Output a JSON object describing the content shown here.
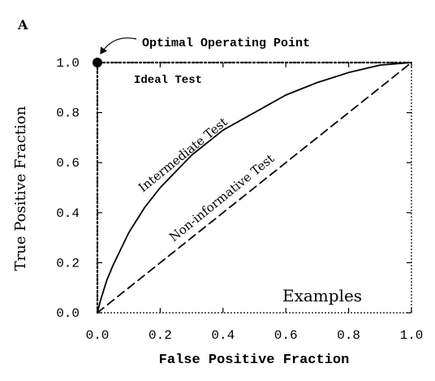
{
  "chart_data": {
    "type": "line",
    "panel_label": "A",
    "xlabel": "False Positive Fraction",
    "ylabel": "True Positive Fraction",
    "xlim": [
      0.0,
      1.0
    ],
    "ylim": [
      0.0,
      1.0
    ],
    "x_ticks": [
      "0.0",
      "0.2",
      "0.4",
      "0.6",
      "0.8",
      "1.0"
    ],
    "y_ticks": [
      "0.0",
      "0.2",
      "0.4",
      "0.6",
      "0.8",
      "1.0"
    ],
    "grid": false,
    "series": [
      {
        "name": "Ideal Test",
        "style": "dotted",
        "x": [
          0.0,
          0.0,
          1.0
        ],
        "y": [
          0.0,
          1.0,
          1.0
        ]
      },
      {
        "name": "Intermediate Test",
        "style": "solid",
        "x": [
          0.0,
          0.01,
          0.03,
          0.05,
          0.1,
          0.15,
          0.2,
          0.3,
          0.4,
          0.5,
          0.6,
          0.7,
          0.8,
          0.9,
          1.0
        ],
        "y": [
          0.0,
          0.05,
          0.13,
          0.19,
          0.32,
          0.42,
          0.5,
          0.63,
          0.73,
          0.8,
          0.87,
          0.92,
          0.96,
          0.99,
          1.0
        ]
      },
      {
        "name": "Non-informative Test",
        "style": "dashed",
        "x": [
          0.0,
          1.0
        ],
        "y": [
          0.0,
          1.0
        ]
      }
    ],
    "highlight_point": {
      "x": 0.0,
      "y": 1.0
    },
    "annotations": {
      "optimal_point": "Optimal Operating Point",
      "ideal": "Ideal Test",
      "intermediate": "Intermediate Test",
      "non_informative": "Non-informative Test",
      "examples": "Examples"
    }
  }
}
